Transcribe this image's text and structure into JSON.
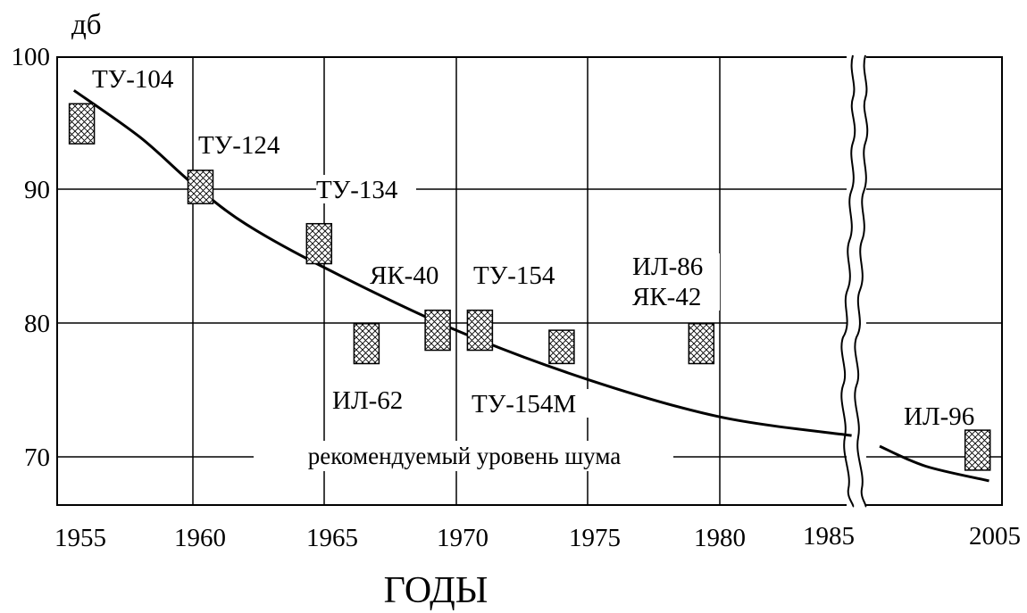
{
  "chart_data": {
    "type": "scatter",
    "ylabel": "дб",
    "xlabel": "ГОДЫ",
    "ylim": [
      65,
      100
    ],
    "yticks": [
      70,
      80,
      90,
      100
    ],
    "xticks": [
      "1955",
      "1960",
      "1965",
      "1970",
      "1975",
      "1980",
      "1985",
      "2005"
    ],
    "axis_break": "between 1985 and 2005",
    "grid": true,
    "reference_line": {
      "label": "рекомендуемый уровень шума",
      "y": 70
    },
    "trend_curve": [
      {
        "x": 1955.5,
        "y": 97.5
      },
      {
        "x": 1958,
        "y": 94
      },
      {
        "x": 1960,
        "y": 90.5
      },
      {
        "x": 1962,
        "y": 87.5
      },
      {
        "x": 1965,
        "y": 84.2
      },
      {
        "x": 1970,
        "y": 79.5
      },
      {
        "x": 1975,
        "y": 75.8
      },
      {
        "x": 1980,
        "y": 73
      },
      {
        "x": 1985,
        "y": 71.6
      }
    ],
    "trend_curve_after_break": [
      {
        "x": 1995,
        "y": 70.8
      },
      {
        "x": 1999,
        "y": 69.3
      },
      {
        "x": 2004.5,
        "y": 68.2
      }
    ],
    "points": [
      {
        "label": "ТУ-104",
        "x": 1955.8,
        "y_low": 93.5,
        "y_high": 96.5
      },
      {
        "label": "ТУ-124",
        "x": 1960.3,
        "y_low": 89,
        "y_high": 91.5
      },
      {
        "label": "ТУ-134",
        "x": 1964.8,
        "y_low": 84.5,
        "y_high": 87.5
      },
      {
        "label": "ИЛ-62",
        "x": 1966.6,
        "y_low": 77,
        "y_high": 80
      },
      {
        "label": "ЯК-40",
        "x": 1969.3,
        "y_low": 78,
        "y_high": 81
      },
      {
        "label": "ТУ-154",
        "x": 1970.9,
        "y_low": 78,
        "y_high": 81
      },
      {
        "label": "ТУ-154М",
        "x": 1974,
        "y_low": 77,
        "y_high": 79.5
      },
      {
        "label": "ИЛ-86 ЯК-42",
        "x": 1979.3,
        "y_low": 77,
        "y_high": 80
      },
      {
        "label": "ИЛ-96",
        "x": 2003.5,
        "y_low": 69,
        "y_high": 72
      }
    ],
    "annotations": {
      "tu104": "ТУ-104",
      "tu124": "ТУ-124",
      "tu134": "ТУ-134",
      "yak40": "ЯК-40",
      "tu154": "ТУ-154",
      "il86": "ИЛ-86",
      "yak42": "ЯК-42",
      "il62": "ИЛ-62",
      "tu154m": "ТУ-154М",
      "il96": "ИЛ-96"
    }
  }
}
